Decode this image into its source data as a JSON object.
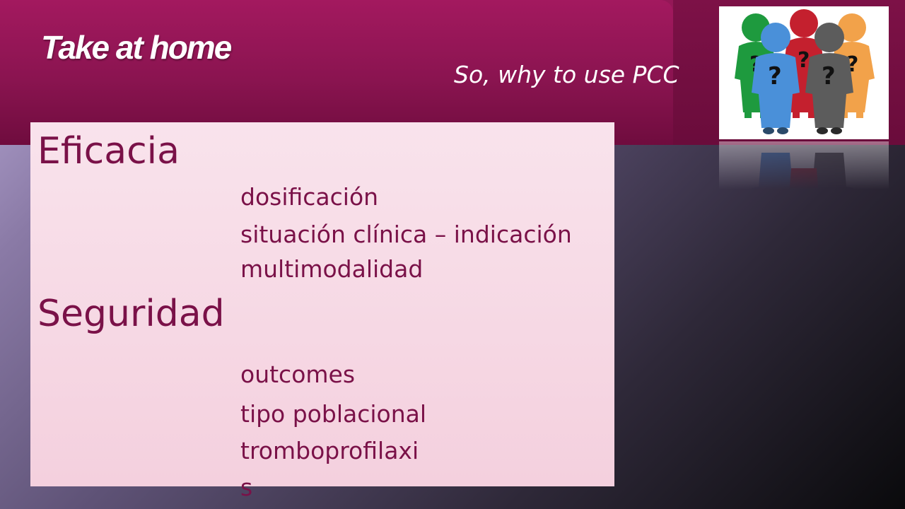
{
  "slide": {
    "title": "Take at home",
    "subtitle": "So, why to use PCC"
  },
  "content": {
    "sections": [
      {
        "heading": "Eficacia",
        "items": [
          "dosificación",
          "situación clínica – indicación",
          "multimodalidad"
        ]
      },
      {
        "heading": "Seguridad",
        "items": [
          "outcomes",
          "tipo poblacional",
          "tromboprofilaxi",
          "s"
        ]
      }
    ]
  },
  "illustration": {
    "icon": "people-question-marks-icon",
    "figures": [
      {
        "color": "#1e9a3e",
        "mark": "?"
      },
      {
        "color": "#c4202e",
        "mark": "?"
      },
      {
        "color": "#f2a24a",
        "mark": "?"
      },
      {
        "color": "#4a90d9",
        "mark": "?"
      },
      {
        "color": "#5c5c5c",
        "mark": "?"
      }
    ]
  },
  "colors": {
    "banner": "#8a1652",
    "text_accent": "#7a1148",
    "box": "#f6d8e4"
  }
}
